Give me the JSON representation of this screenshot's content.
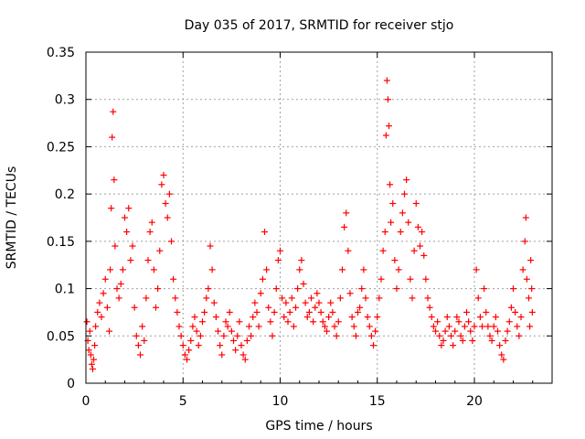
{
  "chart_data": {
    "type": "scatter",
    "title": "Day 035 of 2017, SRMTID for receiver stjo",
    "xlabel": "GPS time / hours",
    "ylabel": "SRMTID / TECUs",
    "xlim": [
      0,
      24
    ],
    "ylim": [
      0,
      0.35
    ],
    "xticks": [
      0,
      5,
      10,
      15,
      20
    ],
    "yticks": [
      0,
      0.05,
      0.1,
      0.15,
      0.2,
      0.25,
      0.3,
      0.35
    ],
    "xtick_labels": [
      "0",
      "5",
      "10",
      "15",
      "20"
    ],
    "ytick_labels": [
      "0",
      "0.05",
      "0.1",
      "0.15",
      "0.2",
      "0.25",
      "0.3",
      "0.35"
    ],
    "grid": true,
    "marker": "+",
    "color": "#ff0000",
    "series": [
      {
        "values": [
          [
            0.05,
            0.065
          ],
          [
            0.1,
            0.045
          ],
          [
            0.15,
            0.035
          ],
          [
            0.2,
            0.055
          ],
          [
            0.25,
            0.03
          ],
          [
            0.3,
            0.02
          ],
          [
            0.35,
            0.015
          ],
          [
            0.4,
            0.025
          ],
          [
            0.45,
            0.04
          ],
          [
            0.5,
            0.06
          ],
          [
            0.6,
            0.075
          ],
          [
            0.7,
            0.085
          ],
          [
            0.8,
            0.07
          ],
          [
            0.9,
            0.095
          ],
          [
            1.0,
            0.11
          ],
          [
            1.1,
            0.08
          ],
          [
            1.2,
            0.055
          ],
          [
            1.25,
            0.12
          ],
          [
            1.3,
            0.185
          ],
          [
            1.35,
            0.26
          ],
          [
            1.4,
            0.287
          ],
          [
            1.45,
            0.215
          ],
          [
            1.5,
            0.145
          ],
          [
            1.6,
            0.1
          ],
          [
            1.7,
            0.09
          ],
          [
            1.8,
            0.105
          ],
          [
            1.9,
            0.12
          ],
          [
            2.0,
            0.175
          ],
          [
            2.1,
            0.16
          ],
          [
            2.2,
            0.185
          ],
          [
            2.3,
            0.13
          ],
          [
            2.4,
            0.145
          ],
          [
            2.5,
            0.08
          ],
          [
            2.6,
            0.05
          ],
          [
            2.7,
            0.04
          ],
          [
            2.8,
            0.03
          ],
          [
            2.9,
            0.06
          ],
          [
            3.0,
            0.045
          ],
          [
            3.1,
            0.09
          ],
          [
            3.2,
            0.13
          ],
          [
            3.3,
            0.16
          ],
          [
            3.4,
            0.17
          ],
          [
            3.5,
            0.12
          ],
          [
            3.6,
            0.08
          ],
          [
            3.7,
            0.1
          ],
          [
            3.8,
            0.14
          ],
          [
            3.9,
            0.21
          ],
          [
            4.0,
            0.22
          ],
          [
            4.1,
            0.19
          ],
          [
            4.2,
            0.175
          ],
          [
            4.3,
            0.2
          ],
          [
            4.4,
            0.15
          ],
          [
            4.5,
            0.11
          ],
          [
            4.6,
            0.09
          ],
          [
            4.7,
            0.075
          ],
          [
            4.8,
            0.06
          ],
          [
            4.9,
            0.05
          ],
          [
            5.0,
            0.04
          ],
          [
            5.1,
            0.03
          ],
          [
            5.2,
            0.025
          ],
          [
            5.3,
            0.035
          ],
          [
            5.4,
            0.045
          ],
          [
            5.5,
            0.06
          ],
          [
            5.6,
            0.07
          ],
          [
            5.7,
            0.055
          ],
          [
            5.8,
            0.04
          ],
          [
            5.9,
            0.05
          ],
          [
            6.0,
            0.065
          ],
          [
            6.1,
            0.075
          ],
          [
            6.2,
            0.09
          ],
          [
            6.3,
            0.1
          ],
          [
            6.4,
            0.145
          ],
          [
            6.5,
            0.12
          ],
          [
            6.6,
            0.085
          ],
          [
            6.7,
            0.07
          ],
          [
            6.8,
            0.055
          ],
          [
            6.9,
            0.04
          ],
          [
            7.0,
            0.03
          ],
          [
            7.1,
            0.05
          ],
          [
            7.2,
            0.065
          ],
          [
            7.3,
            0.06
          ],
          [
            7.4,
            0.075
          ],
          [
            7.5,
            0.055
          ],
          [
            7.6,
            0.045
          ],
          [
            7.7,
            0.035
          ],
          [
            7.8,
            0.05
          ],
          [
            7.9,
            0.065
          ],
          [
            8.0,
            0.04
          ],
          [
            8.1,
            0.03
          ],
          [
            8.2,
            0.025
          ],
          [
            8.3,
            0.045
          ],
          [
            8.4,
            0.06
          ],
          [
            8.5,
            0.05
          ],
          [
            8.6,
            0.07
          ],
          [
            8.7,
            0.085
          ],
          [
            8.8,
            0.075
          ],
          [
            8.9,
            0.06
          ],
          [
            9.0,
            0.095
          ],
          [
            9.1,
            0.11
          ],
          [
            9.2,
            0.16
          ],
          [
            9.3,
            0.12
          ],
          [
            9.4,
            0.08
          ],
          [
            9.5,
            0.065
          ],
          [
            9.6,
            0.05
          ],
          [
            9.7,
            0.075
          ],
          [
            9.8,
            0.1
          ],
          [
            9.9,
            0.13
          ],
          [
            10.0,
            0.14
          ],
          [
            10.1,
            0.09
          ],
          [
            10.2,
            0.07
          ],
          [
            10.3,
            0.085
          ],
          [
            10.4,
            0.065
          ],
          [
            10.5,
            0.075
          ],
          [
            10.6,
            0.09
          ],
          [
            10.7,
            0.06
          ],
          [
            10.8,
            0.08
          ],
          [
            10.9,
            0.1
          ],
          [
            11.0,
            0.12
          ],
          [
            11.1,
            0.13
          ],
          [
            11.2,
            0.105
          ],
          [
            11.3,
            0.085
          ],
          [
            11.4,
            0.07
          ],
          [
            11.5,
            0.075
          ],
          [
            11.6,
            0.09
          ],
          [
            11.7,
            0.065
          ],
          [
            11.8,
            0.08
          ],
          [
            11.9,
            0.095
          ],
          [
            12.0,
            0.085
          ],
          [
            12.1,
            0.075
          ],
          [
            12.2,
            0.065
          ],
          [
            12.3,
            0.06
          ],
          [
            12.4,
            0.055
          ],
          [
            12.5,
            0.07
          ],
          [
            12.6,
            0.085
          ],
          [
            12.7,
            0.075
          ],
          [
            12.8,
            0.06
          ],
          [
            12.9,
            0.05
          ],
          [
            13.0,
            0.065
          ],
          [
            13.1,
            0.09
          ],
          [
            13.2,
            0.12
          ],
          [
            13.3,
            0.165
          ],
          [
            13.4,
            0.18
          ],
          [
            13.5,
            0.14
          ],
          [
            13.6,
            0.095
          ],
          [
            13.7,
            0.07
          ],
          [
            13.8,
            0.06
          ],
          [
            13.9,
            0.05
          ],
          [
            14.0,
            0.075
          ],
          [
            14.1,
            0.08
          ],
          [
            14.2,
            0.1
          ],
          [
            14.3,
            0.12
          ],
          [
            14.4,
            0.09
          ],
          [
            14.5,
            0.07
          ],
          [
            14.6,
            0.06
          ],
          [
            14.7,
            0.05
          ],
          [
            14.8,
            0.04
          ],
          [
            14.9,
            0.055
          ],
          [
            15.0,
            0.07
          ],
          [
            15.1,
            0.09
          ],
          [
            15.2,
            0.11
          ],
          [
            15.3,
            0.14
          ],
          [
            15.4,
            0.16
          ],
          [
            15.45,
            0.262
          ],
          [
            15.5,
            0.32
          ],
          [
            15.55,
            0.3
          ],
          [
            15.6,
            0.272
          ],
          [
            15.65,
            0.21
          ],
          [
            15.7,
            0.17
          ],
          [
            15.8,
            0.19
          ],
          [
            15.9,
            0.13
          ],
          [
            16.0,
            0.1
          ],
          [
            16.1,
            0.12
          ],
          [
            16.2,
            0.16
          ],
          [
            16.3,
            0.18
          ],
          [
            16.4,
            0.2
          ],
          [
            16.5,
            0.215
          ],
          [
            16.6,
            0.17
          ],
          [
            16.7,
            0.11
          ],
          [
            16.8,
            0.09
          ],
          [
            16.9,
            0.14
          ],
          [
            17.0,
            0.19
          ],
          [
            17.1,
            0.165
          ],
          [
            17.2,
            0.145
          ],
          [
            17.3,
            0.16
          ],
          [
            17.4,
            0.135
          ],
          [
            17.5,
            0.11
          ],
          [
            17.6,
            0.09
          ],
          [
            17.7,
            0.08
          ],
          [
            17.8,
            0.07
          ],
          [
            17.9,
            0.06
          ],
          [
            18.0,
            0.055
          ],
          [
            18.1,
            0.065
          ],
          [
            18.2,
            0.05
          ],
          [
            18.3,
            0.04
          ],
          [
            18.4,
            0.045
          ],
          [
            18.5,
            0.055
          ],
          [
            18.6,
            0.07
          ],
          [
            18.7,
            0.06
          ],
          [
            18.8,
            0.05
          ],
          [
            18.9,
            0.04
          ],
          [
            19.0,
            0.055
          ],
          [
            19.1,
            0.07
          ],
          [
            19.2,
            0.065
          ],
          [
            19.3,
            0.05
          ],
          [
            19.4,
            0.045
          ],
          [
            19.5,
            0.06
          ],
          [
            19.6,
            0.075
          ],
          [
            19.7,
            0.065
          ],
          [
            19.8,
            0.055
          ],
          [
            19.9,
            0.045
          ],
          [
            20.0,
            0.06
          ],
          [
            20.1,
            0.12
          ],
          [
            20.2,
            0.09
          ],
          [
            20.3,
            0.07
          ],
          [
            20.4,
            0.06
          ],
          [
            20.5,
            0.1
          ],
          [
            20.6,
            0.075
          ],
          [
            20.7,
            0.06
          ],
          [
            20.8,
            0.05
          ],
          [
            20.9,
            0.045
          ],
          [
            21.0,
            0.06
          ],
          [
            21.1,
            0.07
          ],
          [
            21.2,
            0.055
          ],
          [
            21.3,
            0.04
          ],
          [
            21.4,
            0.03
          ],
          [
            21.5,
            0.025
          ],
          [
            21.6,
            0.045
          ],
          [
            21.7,
            0.055
          ],
          [
            21.8,
            0.065
          ],
          [
            21.9,
            0.08
          ],
          [
            22.0,
            0.1
          ],
          [
            22.1,
            0.075
          ],
          [
            22.2,
            0.06
          ],
          [
            22.3,
            0.05
          ],
          [
            22.4,
            0.07
          ],
          [
            22.5,
            0.12
          ],
          [
            22.6,
            0.15
          ],
          [
            22.65,
            0.175
          ],
          [
            22.7,
            0.11
          ],
          [
            22.8,
            0.09
          ],
          [
            22.85,
            0.06
          ],
          [
            22.9,
            0.13
          ],
          [
            22.95,
            0.1
          ],
          [
            22.98,
            0.075
          ]
        ]
      }
    ]
  }
}
